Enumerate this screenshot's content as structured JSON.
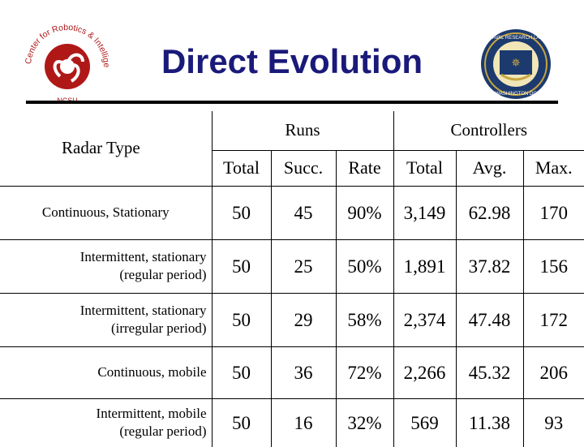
{
  "header": {
    "title": "Direct Evolution",
    "left_logo_text": "Center for Robotics & Intelligent Machines · NCSU ·",
    "right_logo_text": "NAVAL RESEARCH LABORATORY WASHINGTON DC"
  },
  "table": {
    "row_header_label": "Radar Type",
    "groups": [
      "Runs",
      "Controllers"
    ],
    "columns": [
      "Total",
      "Succ.",
      "Rate",
      "Total",
      "Avg.",
      "Max."
    ],
    "rows": [
      {
        "type_line1": "Continuous, Stationary",
        "type_line2": "",
        "cells": [
          "50",
          "45",
          "90%",
          "3,149",
          "62.98",
          "170"
        ]
      },
      {
        "type_line1": "Intermittent, stationary",
        "type_line2": "(regular period)",
        "cells": [
          "50",
          "25",
          "50%",
          "1,891",
          "37.82",
          "156"
        ]
      },
      {
        "type_line1": "Intermittent, stationary",
        "type_line2": "(irregular period)",
        "cells": [
          "50",
          "29",
          "58%",
          "2,374",
          "47.48",
          "172"
        ]
      },
      {
        "type_line1": "Continuous, mobile",
        "type_line2": "",
        "cells": [
          "50",
          "36",
          "72%",
          "2,266",
          "45.32",
          "206"
        ]
      },
      {
        "type_line1": "Intermittent, mobile",
        "type_line2": "(regular period)",
        "cells": [
          "50",
          "16",
          "32%",
          "569",
          "11.38",
          "93"
        ]
      }
    ]
  }
}
